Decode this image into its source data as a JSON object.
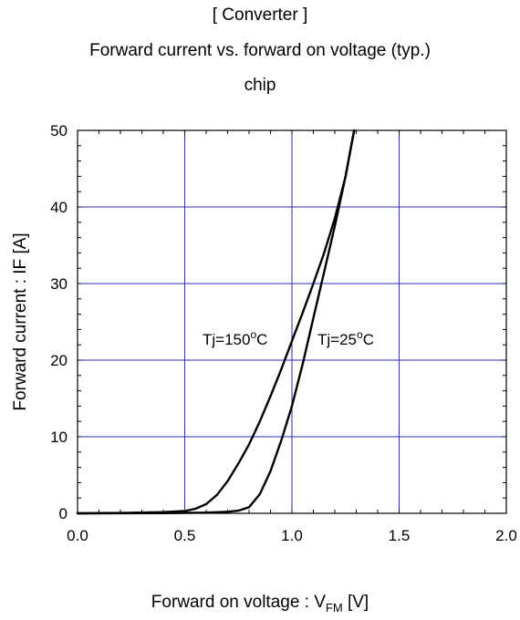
{
  "header": {
    "line1": "[ Converter ]",
    "line2": "Forward current  vs.  forward on voltage  (typ.)",
    "line3": "chip"
  },
  "axes": {
    "xlabel_main": "Forward on voltage : V",
    "xlabel_sub": "FM",
    "xlabel_unit": " [V]",
    "ylabel": "Forward current : IF [A]"
  },
  "colors": {
    "grid": "#2a2ab8",
    "curve": "#000000",
    "frame": "#000000"
  },
  "chart_data": {
    "type": "line",
    "title": "Forward current  vs.  forward on voltage  (typ.)",
    "xlim": [
      0.0,
      2.0
    ],
    "ylim": [
      0,
      50
    ],
    "xticks": [
      "0.0",
      "0.5",
      "1.0",
      "1.5",
      "2.0"
    ],
    "yticks": [
      "0",
      "10",
      "20",
      "30",
      "40",
      "50"
    ],
    "grid": true,
    "series": [
      {
        "name": "Tj=150oC",
        "label_base": "Tj=150",
        "label_sup": "o",
        "label_end": "C",
        "x": [
          0.0,
          0.2,
          0.4,
          0.5,
          0.55,
          0.6,
          0.65,
          0.7,
          0.75,
          0.8,
          0.85,
          0.9,
          0.95,
          1.0,
          1.05,
          1.1,
          1.15,
          1.2,
          1.25,
          1.29
        ],
        "y": [
          0.0,
          0.05,
          0.15,
          0.3,
          0.6,
          1.2,
          2.4,
          4.2,
          6.5,
          9.0,
          12.0,
          15.3,
          18.8,
          22.5,
          26.2,
          30.0,
          34.0,
          38.5,
          44.0,
          50.0
        ]
      },
      {
        "name": "Tj=25oC",
        "label_base": "Tj=25",
        "label_sup": "o",
        "label_end": "C",
        "x": [
          0.0,
          0.4,
          0.6,
          0.7,
          0.75,
          0.8,
          0.85,
          0.9,
          0.95,
          1.0,
          1.05,
          1.1,
          1.15,
          1.2,
          1.25,
          1.29
        ],
        "y": [
          0.0,
          0.02,
          0.1,
          0.2,
          0.35,
          0.8,
          2.5,
          5.5,
          9.5,
          14.0,
          19.5,
          25.5,
          31.5,
          37.5,
          44.0,
          50.0
        ]
      }
    ]
  }
}
